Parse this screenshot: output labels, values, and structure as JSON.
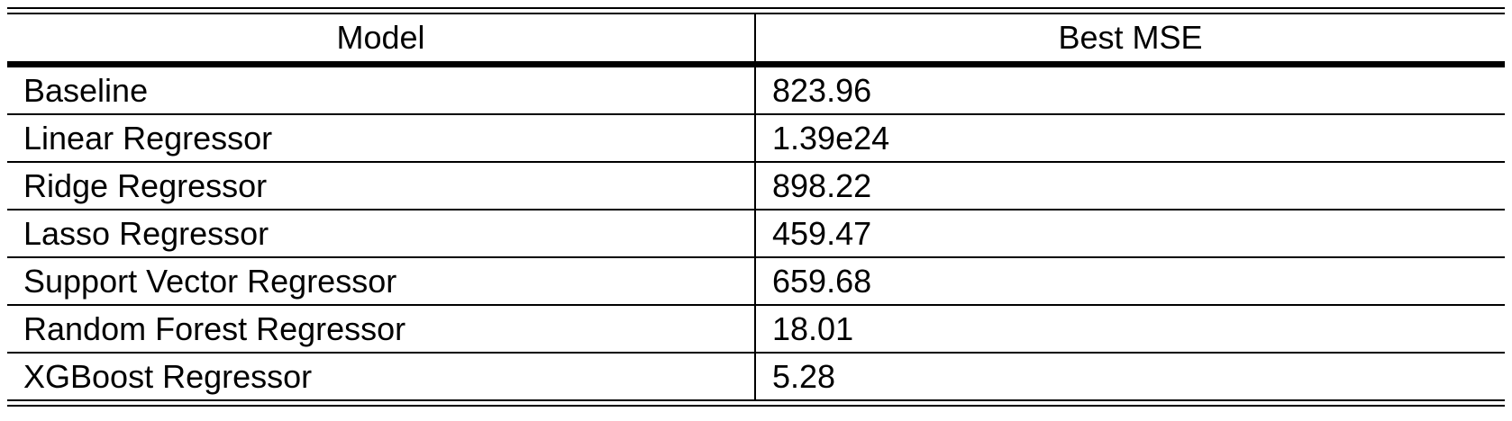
{
  "table": {
    "headers": {
      "model": "Model",
      "mse": "Best MSE"
    },
    "rows": [
      {
        "model": "Baseline",
        "mse": "823.96"
      },
      {
        "model": "Linear Regressor",
        "mse": "1.39e24"
      },
      {
        "model": "Ridge Regressor",
        "mse": "898.22"
      },
      {
        "model": "Lasso Regressor",
        "mse": "459.47"
      },
      {
        "model": "Support Vector Regressor",
        "mse": "659.68"
      },
      {
        "model": "Random Forest Regressor",
        "mse": "18.01"
      },
      {
        "model": "XGBoost Regressor",
        "mse": "5.28"
      }
    ]
  }
}
